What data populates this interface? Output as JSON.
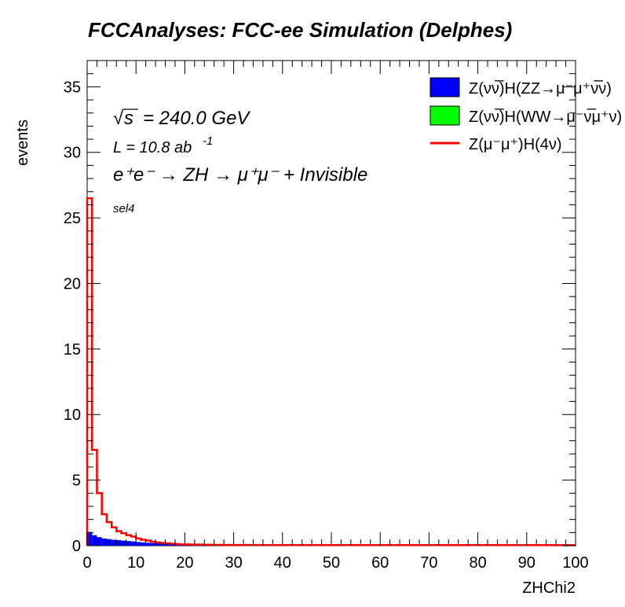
{
  "chart_data": {
    "type": "bar",
    "title": "FCCAnalyses: FCC-ee Simulation (Delphes)",
    "xlabel": "ZHChi2",
    "ylabel": "events",
    "xlim": [
      0,
      100
    ],
    "ylim": [
      0,
      37
    ],
    "x_ticks": [
      "0",
      "10",
      "20",
      "30",
      "40",
      "50",
      "60",
      "70",
      "80",
      "90",
      "100"
    ],
    "y_ticks": [
      "0",
      "5",
      "10",
      "15",
      "20",
      "25",
      "30",
      "35"
    ],
    "bin_width": 1,
    "grid": false,
    "legend_position": "top-right",
    "annotations": {
      "energy_sqrt": "s",
      "energy_value": "= 240.0 GeV",
      "lumi_prefix": "L = 10.8 ab",
      "lumi_exp": "-1",
      "process": "e⁺e⁻ → ZH → μ⁺μ⁻ + Invisible",
      "selection": "sel4"
    },
    "series": [
      {
        "name": "Z(νν̅)H(ZZ→μ⁻μ⁺ν̅ν)",
        "style": "filled-stack",
        "color": "#0000ff",
        "values": [
          1.05,
          0.8,
          0.65,
          0.55,
          0.5,
          0.45,
          0.42,
          0.38,
          0.35,
          0.32,
          0.28,
          0.25,
          0.22,
          0.2,
          0.18,
          0.15,
          0.13,
          0.12,
          0.1,
          0.09,
          0.08,
          0.07,
          0.06,
          0.06,
          0.05,
          0.05,
          0.04,
          0.04,
          0.03,
          0.03
        ]
      },
      {
        "name": "Z(νν̅)H(WW→μ⁻ν̅μ⁺ν)",
        "style": "filled-stack",
        "color": "#00ff00",
        "values": [
          0,
          0,
          0,
          0,
          0,
          0,
          0,
          0,
          0,
          0,
          0,
          0,
          0,
          0,
          0,
          0,
          0,
          0,
          0,
          0,
          0,
          0,
          0,
          0,
          0,
          0,
          0,
          0,
          0,
          0
        ]
      },
      {
        "name": "Z(μ⁻μ⁺)H(4ν)",
        "style": "line",
        "color": "#ff0000",
        "values": [
          26.5,
          7.3,
          4.0,
          2.4,
          1.8,
          1.4,
          1.1,
          0.95,
          0.8,
          0.7,
          0.55,
          0.45,
          0.4,
          0.3,
          0.25,
          0.2,
          0.18,
          0.15,
          0.12,
          0.1,
          0.1,
          0.09,
          0.08,
          0.08,
          0.07,
          0.07,
          0.06,
          0.06,
          0.05,
          0.05
        ]
      }
    ]
  }
}
